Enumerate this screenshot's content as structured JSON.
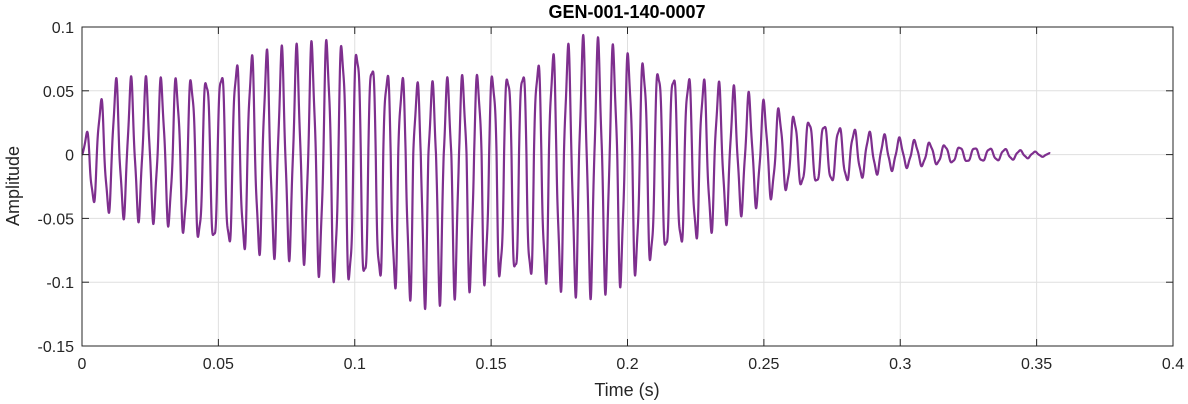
{
  "chart_data": {
    "type": "line",
    "title": "GEN-001-140-0007",
    "xlabel": "Time (s)",
    "ylabel": "Amplitude",
    "xlim": [
      0,
      0.4
    ],
    "ylim": [
      -0.15,
      0.1
    ],
    "grid": true,
    "x_ticks": [
      0,
      0.05,
      0.1,
      0.15,
      0.2,
      0.25,
      0.3,
      0.35,
      0.4
    ],
    "x_tick_labels": [
      "0",
      "0.05",
      "0.1",
      "0.15",
      "0.2",
      "0.25",
      "0.3",
      "0.35",
      "0.4"
    ],
    "y_ticks": [
      -0.15,
      -0.1,
      -0.05,
      0,
      0.05,
      0.1
    ],
    "y_tick_labels": [
      "-0.15",
      "-0.1",
      "-0.05",
      "0",
      "0.05",
      "0.1"
    ],
    "series": [
      {
        "color": "#7E2F8E",
        "oscillation_hz": 181,
        "duration_s": 0.355,
        "envelope": {
          "t": [
            0,
            0.003,
            0.012,
            0.03,
            0.045,
            0.06,
            0.08,
            0.09,
            0.1,
            0.11,
            0.125,
            0.14,
            0.16,
            0.185,
            0.2,
            0.22,
            0.24,
            0.26,
            0.28,
            0.3,
            0.32,
            0.34,
            0.355
          ],
          "pos": [
            0.0,
            0.03,
            0.055,
            0.055,
            0.06,
            0.074,
            0.078,
            0.085,
            0.085,
            0.065,
            0.05,
            0.057,
            0.065,
            0.085,
            0.075,
            0.062,
            0.048,
            0.03,
            0.02,
            0.012,
            0.006,
            0.004,
            0.001
          ],
          "neg": [
            -0.03,
            -0.035,
            -0.045,
            -0.05,
            -0.07,
            -0.073,
            -0.075,
            -0.095,
            -0.103,
            -0.1,
            -0.11,
            -0.1,
            -0.098,
            -0.102,
            -0.095,
            -0.072,
            -0.045,
            -0.025,
            -0.02,
            -0.01,
            -0.006,
            -0.004,
            -0.001
          ]
        }
      }
    ]
  }
}
